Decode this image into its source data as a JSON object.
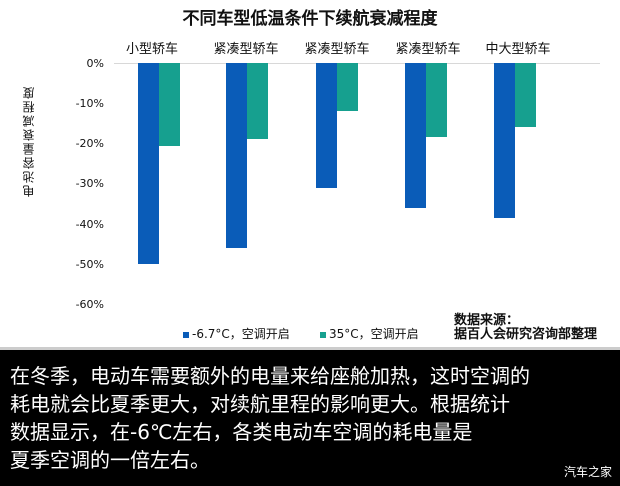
{
  "chart_data": {
    "type": "bar",
    "title": "不同车型低温条件下续航衰减程度",
    "categories": [
      "小型轿车",
      "紧凑型轿车",
      "紧凑型轿车",
      "紧凑型轿车",
      "中大型轿车"
    ],
    "series": [
      {
        "name": "-6.7°C，空调开启",
        "color": "#0a5cb8",
        "values": [
          -50,
          -46,
          -31,
          -36,
          -38.5
        ]
      },
      {
        "name": "35°C，空调开启",
        "color": "#16a08f",
        "values": [
          -20.7,
          -19,
          -12,
          -18.5,
          -16
        ]
      }
    ],
    "xlabel": "",
    "ylabel": "电池容量衰减程度",
    "ylim": [
      -60,
      0
    ],
    "yticks": [
      "0%",
      "-10%",
      "-20%",
      "-30%",
      "-40%",
      "-50%",
      "-60%"
    ],
    "grid": false,
    "legend_position": "bottom",
    "source": [
      "数据来源：",
      "据百人会研究咨询部整理"
    ]
  },
  "caption": {
    "lines": [
      "在冬季，电动车需要额外的电量来给座舱加热，这时空调的",
      "耗电就会比夏季更大，对续航里程的影响更大。根据统计",
      "数据显示，在-6℃左右，各类电动车空调的耗电量是",
      "夏季空调的一倍左右。"
    ],
    "watermark": "汽车之家"
  }
}
